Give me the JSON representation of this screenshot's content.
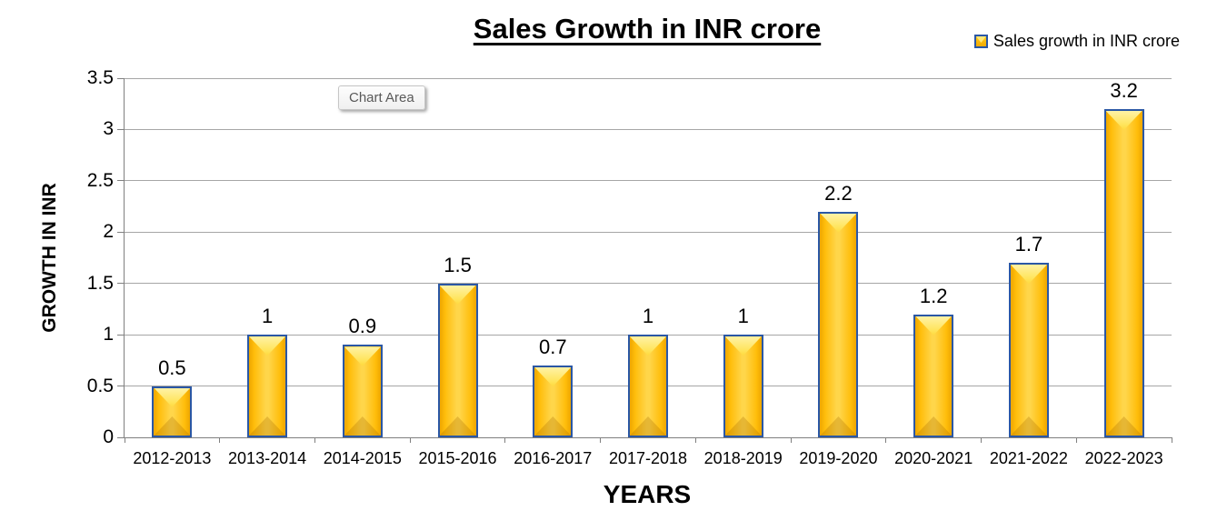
{
  "title": "Sales Growth in INR crore",
  "legend": {
    "label": "Sales growth in INR crore"
  },
  "tooltip": "Chart Area",
  "chart_data": {
    "type": "bar",
    "categories": [
      "2012-2013",
      "2013-2014",
      "2014-2015",
      "2015-2016",
      "2016-2017",
      "2017-2018",
      "2018-2019",
      "2019-2020",
      "2020-2021",
      "2021-2022",
      "2022-2023"
    ],
    "values": [
      0.5,
      1,
      0.9,
      1.5,
      0.7,
      1,
      1,
      2.2,
      1.2,
      1.7,
      3.2
    ],
    "series_name": "Sales growth in INR crore",
    "title": "Sales Growth in INR crore",
    "xlabel": "YEARS",
    "ylabel": "GROWTH IN INR",
    "ylim": [
      0,
      3.5
    ],
    "ytick_step": 0.5,
    "grid": true,
    "legend_position": "top-right",
    "data_labels": true
  },
  "colors": {
    "bar_fill": "#FFC000",
    "bar_border": "#2A57A5",
    "gridline": "#A6A6A6",
    "axis": "#808080",
    "text": "#000000",
    "tooltip_text": "#595959",
    "tooltip_border": "#C6C6C6"
  }
}
